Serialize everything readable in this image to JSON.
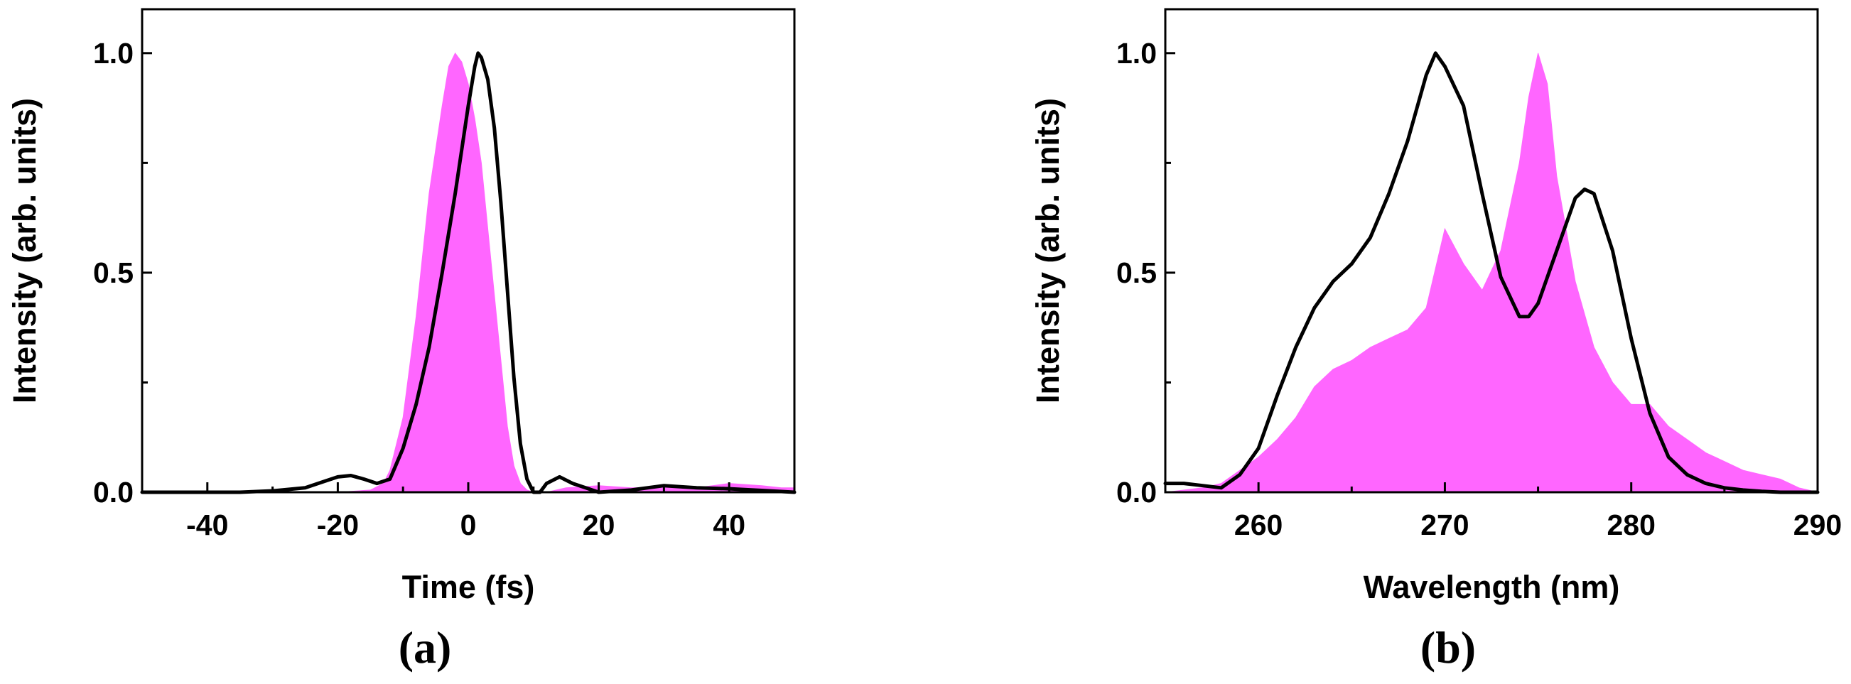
{
  "chart_data": [
    {
      "type": "area",
      "panel_label": "(a)",
      "xlabel": "Time (fs)",
      "ylabel": "Intensity (arb. units)",
      "xlim": [
        -50,
        50
      ],
      "ylim": [
        0,
        1.1
      ],
      "xticks": [
        -40,
        -20,
        0,
        20,
        40
      ],
      "xtick_labels": [
        "-40",
        "-20",
        "0",
        "20",
        "40"
      ],
      "yticks": [
        0,
        0.5,
        1.0
      ],
      "ytick_labels": [
        "0.0",
        "0.5",
        "1.0"
      ],
      "grid": false,
      "series": [
        {
          "style": "filled",
          "color": "#ff66ff",
          "x": [
            -50,
            -20,
            -15,
            -13,
            -12,
            -10,
            -8,
            -6,
            -4,
            -3,
            -2,
            -1,
            0,
            1,
            2,
            3,
            4,
            5,
            6,
            7,
            8,
            9,
            10,
            12,
            15,
            20,
            25,
            30,
            35,
            40,
            45,
            48,
            50
          ],
          "y": [
            0,
            0,
            0.005,
            0.02,
            0.05,
            0.17,
            0.4,
            0.68,
            0.88,
            0.97,
            1.0,
            0.98,
            0.93,
            0.85,
            0.75,
            0.6,
            0.45,
            0.3,
            0.15,
            0.06,
            0.02,
            0.005,
            0.0,
            0.0,
            0.01,
            0.015,
            0.01,
            0.012,
            0.01,
            0.02,
            0.015,
            0.01,
            0.01
          ]
        },
        {
          "style": "line",
          "color": "#000000",
          "x": [
            -50,
            -35,
            -30,
            -25,
            -22,
            -20,
            -18,
            -16,
            -14,
            -12,
            -10,
            -8,
            -6,
            -4,
            -2,
            0,
            1,
            1.5,
            2,
            3,
            4,
            5,
            6,
            7,
            8,
            9,
            10,
            11,
            12,
            14,
            16,
            18,
            20,
            25,
            30,
            35,
            40,
            45,
            50
          ],
          "y": [
            0,
            0,
            0.003,
            0.01,
            0.025,
            0.035,
            0.038,
            0.03,
            0.02,
            0.03,
            0.1,
            0.2,
            0.33,
            0.5,
            0.68,
            0.88,
            0.97,
            1.0,
            0.99,
            0.94,
            0.83,
            0.66,
            0.46,
            0.26,
            0.11,
            0.03,
            0.0,
            0.0,
            0.02,
            0.035,
            0.02,
            0.01,
            0.0,
            0.005,
            0.015,
            0.01,
            0.008,
            0.004,
            0.0
          ]
        }
      ]
    },
    {
      "type": "area",
      "panel_label": "(b)",
      "xlabel": "Wavelength (nm)",
      "ylabel": "Intensity (arb. units)",
      "xlim": [
        255,
        290
      ],
      "ylim": [
        0,
        1.1
      ],
      "xticks": [
        260,
        270,
        280,
        290
      ],
      "xtick_labels": [
        "260",
        "270",
        "280",
        "290"
      ],
      "yticks": [
        0,
        0.5,
        1.0
      ],
      "ytick_labels": [
        "0.0",
        "0.5",
        "1.0"
      ],
      "grid": false,
      "series": [
        {
          "style": "filled",
          "color": "#ff66ff",
          "x": [
            255,
            257,
            258,
            259,
            260,
            261,
            262,
            263,
            264,
            265,
            266,
            267,
            268,
            269,
            270,
            271,
            272,
            273,
            274,
            274.5,
            275,
            275.5,
            276,
            277,
            278,
            279,
            280,
            281,
            282,
            283,
            284,
            285,
            286,
            287,
            288,
            289,
            290
          ],
          "y": [
            0.0,
            0.01,
            0.02,
            0.05,
            0.08,
            0.12,
            0.17,
            0.24,
            0.28,
            0.3,
            0.33,
            0.35,
            0.37,
            0.42,
            0.6,
            0.52,
            0.46,
            0.55,
            0.75,
            0.9,
            1.0,
            0.93,
            0.72,
            0.48,
            0.33,
            0.25,
            0.2,
            0.2,
            0.15,
            0.12,
            0.09,
            0.07,
            0.05,
            0.04,
            0.03,
            0.01,
            0.0
          ]
        },
        {
          "style": "line",
          "color": "#000000",
          "x": [
            255,
            256,
            257,
            258,
            259,
            260,
            261,
            262,
            263,
            264,
            265,
            266,
            267,
            268,
            269,
            269.5,
            270,
            271,
            272,
            273,
            274,
            274.5,
            275,
            276,
            277,
            277.5,
            278,
            279,
            280,
            281,
            282,
            283,
            284,
            285,
            286,
            287,
            288,
            289,
            290
          ],
          "y": [
            0.02,
            0.02,
            0.015,
            0.01,
            0.04,
            0.1,
            0.22,
            0.33,
            0.42,
            0.48,
            0.52,
            0.58,
            0.68,
            0.8,
            0.95,
            1.0,
            0.97,
            0.88,
            0.68,
            0.49,
            0.4,
            0.4,
            0.43,
            0.55,
            0.67,
            0.69,
            0.68,
            0.55,
            0.35,
            0.18,
            0.08,
            0.04,
            0.02,
            0.01,
            0.005,
            0.002,
            0.0,
            0.0,
            0.0
          ]
        }
      ]
    }
  ]
}
